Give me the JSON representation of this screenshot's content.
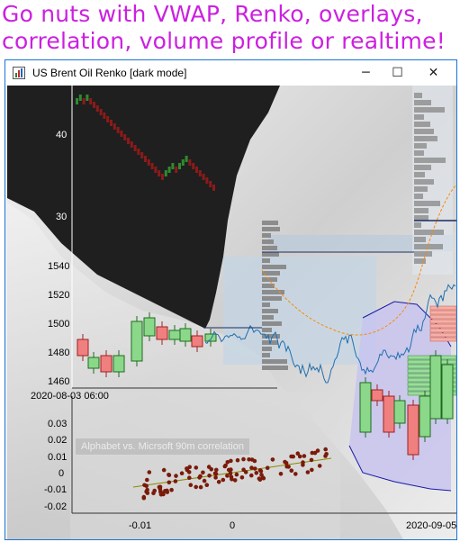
{
  "headline": {
    "line1": "Go nuts with VWAP, Renko, overlays,",
    "line2": "correlation, volume profile or realtime!",
    "color": "#cc20e0"
  },
  "window": {
    "title": "US Brent Oil Renko [dark mode]",
    "icon": "chart-app-icon",
    "controls": {
      "minimize": "─",
      "maximize": "☐",
      "close": "✕"
    }
  },
  "charts": {
    "renko_axis_ticks": [
      "40",
      "30"
    ],
    "main_axis_ticks": [
      "1540",
      "1520",
      "1500",
      "1480",
      "1460"
    ],
    "x_start_label": "2020-08-03 06:00",
    "x_end_label": "2020-09-05",
    "correlation_legend": "Alphabet vs. Micrsoft 90m correlation",
    "correlation_y_ticks": [
      "0.03",
      "0.02",
      "0.01",
      "0",
      "-0.01",
      "-0.02"
    ],
    "correlation_x_ticks": [
      "-0.01",
      "0"
    ]
  },
  "colors": {
    "renko_up": "#2e8b2e",
    "renko_down": "#8b1a1a",
    "line_series": "#1f6fb0",
    "vwap_line": "#ff8800",
    "scatter_point": "#7a1a0a",
    "profile_bar": "#8c8c8c"
  }
}
